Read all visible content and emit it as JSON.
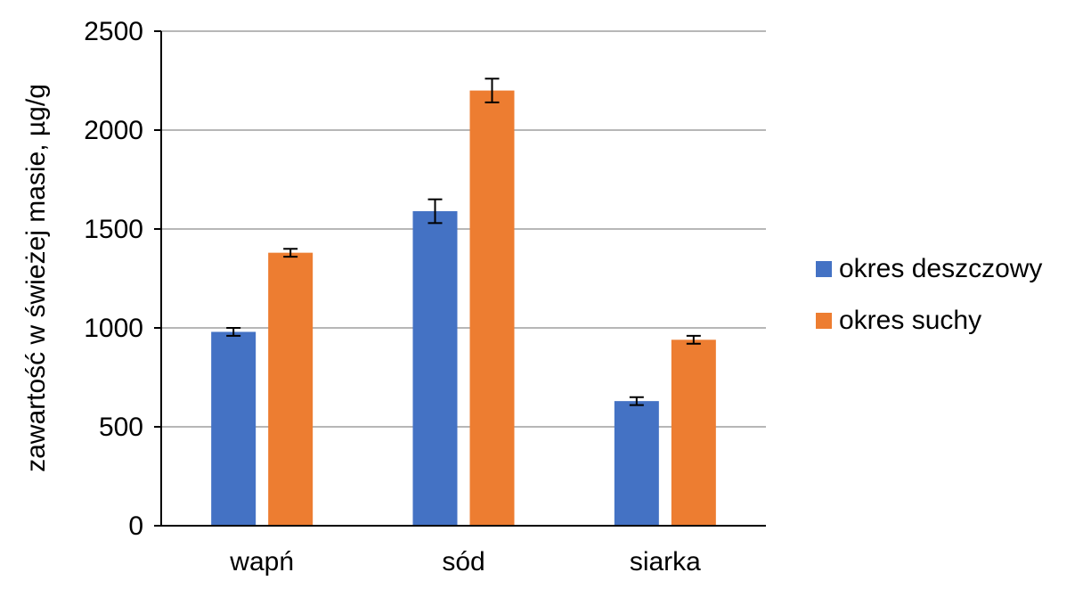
{
  "chart_data": {
    "type": "bar",
    "title": "",
    "xlabel": "",
    "ylabel": "zawartość w świeżej masie, µg/g",
    "ylim": [
      0,
      2500
    ],
    "yticks": [
      0,
      500,
      1000,
      1500,
      2000,
      2500
    ],
    "grid": true,
    "legend_position": "right",
    "categories": [
      "wapń",
      "sód",
      "siarka"
    ],
    "series": [
      {
        "name": "okres deszczowy",
        "color": "#4472C4",
        "values": [
          980,
          1590,
          630
        ],
        "errors": [
          20,
          60,
          20
        ]
      },
      {
        "name": "okres suchy",
        "color": "#ED7D31",
        "values": [
          1380,
          2200,
          940
        ],
        "errors": [
          20,
          60,
          20
        ]
      }
    ]
  }
}
